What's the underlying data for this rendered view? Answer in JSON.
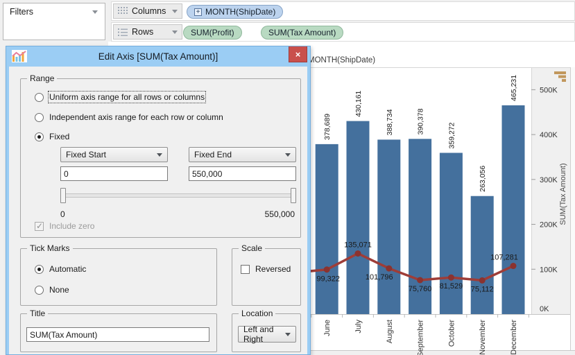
{
  "shelves": {
    "filters": {
      "label": "Filters"
    },
    "columns": {
      "label": "Columns",
      "pill": "MONTH(ShipDate)"
    },
    "rows": {
      "label": "Rows",
      "pills": [
        "SUM(Profit)",
        "SUM(Tax Amount)"
      ]
    }
  },
  "dialog": {
    "title": "Edit Axis [SUM(Tax Amount)]",
    "close_glyph": "×",
    "range": {
      "label": "Range",
      "options": [
        {
          "label": "Uniform axis range for all rows or columns"
        },
        {
          "label": "Independent axis range for each row or column"
        },
        {
          "label": "Fixed"
        }
      ],
      "fixed_start_dropdown": "Fixed Start",
      "fixed_end_dropdown": "Fixed End",
      "fixed_start_value": "0",
      "fixed_end_value": "550,000",
      "slider_min_label": "0",
      "slider_max_label": "550,000",
      "include_zero_label": "Include zero"
    },
    "tick_marks": {
      "label": "Tick Marks",
      "options": [
        {
          "label": "Automatic"
        },
        {
          "label": "None"
        }
      ]
    },
    "scale": {
      "label": "Scale",
      "reversed_label": "Reversed"
    },
    "title_section": {
      "label": "Title",
      "value": "SUM(Tax Amount)"
    },
    "location": {
      "label": "Location",
      "value": "Left and Right"
    }
  },
  "chart": {
    "column_header": "MONTH(ShipDate)"
  },
  "chart_data": {
    "type": "bar+line",
    "categories": [
      "June",
      "July",
      "August",
      "September",
      "October",
      "November",
      "December"
    ],
    "series": [
      {
        "name": "SUM(Profit)",
        "type": "bar",
        "color": "#44709d",
        "values": [
          378689,
          430161,
          388734,
          390378,
          359272,
          263056,
          465231
        ],
        "labels": [
          "378,689",
          "430,161",
          "388,734",
          "390,378",
          "359,272",
          "263,056",
          "465,231"
        ]
      },
      {
        "name": "SUM(Tax Amount)",
        "type": "line",
        "color": "#9e3d38",
        "marker_color": "#8a3330",
        "values": [
          99322,
          135071,
          101796,
          75760,
          81529,
          75112,
          107281
        ],
        "labels": [
          "99,322",
          "135,071",
          "101,796",
          "75,760",
          "81,529",
          "75,112",
          "107,281"
        ],
        "label_offsets": [
          [
            2,
            17
          ],
          [
            0,
            -9
          ],
          [
            -14,
            16
          ],
          [
            0,
            16
          ],
          [
            0,
            16
          ],
          [
            0,
            16
          ],
          [
            -13,
            -9
          ]
        ],
        "lead_in_value": 92000
      }
    ],
    "ylim": [
      0,
      550000
    ],
    "y_axis_right": {
      "title": "SUM(Tax Amount)",
      "ticks": [
        {
          "v": 0,
          "label": "0K"
        },
        {
          "v": 100000,
          "label": "100K"
        },
        {
          "v": 200000,
          "label": "200K"
        },
        {
          "v": 300000,
          "label": "300K"
        },
        {
          "v": 400000,
          "label": "400K"
        },
        {
          "v": 500000,
          "label": "500K"
        }
      ]
    },
    "legend_position": "none",
    "grid": false
  }
}
